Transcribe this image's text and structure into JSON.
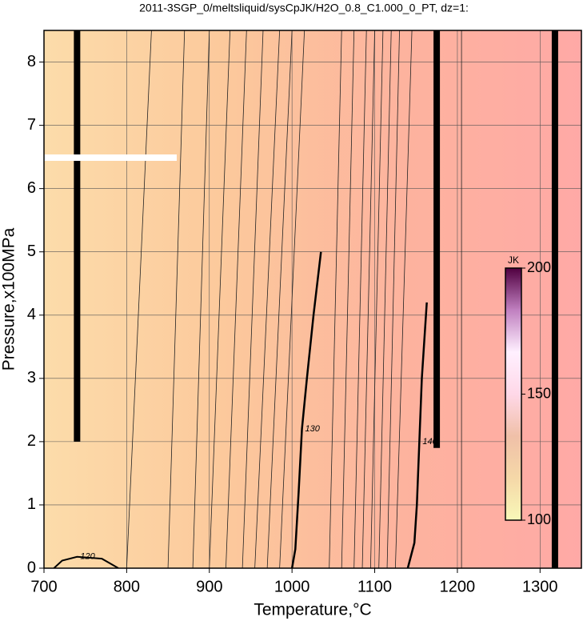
{
  "chart_data": {
    "type": "contour",
    "title": "2011-3SGP_0/meltsliquid/sysCpJK/H2O_0.8_C1.000_0_PT, dz=1:",
    "xlabel": "Temperature,°C",
    "ylabel": "Pressure,x100MPa",
    "xlim": [
      700,
      1350
    ],
    "ylim": [
      0,
      8.5
    ],
    "xticks": [
      700,
      800,
      900,
      1000,
      1100,
      1200,
      1300
    ],
    "yticks": [
      0,
      1,
      2,
      3,
      4,
      5,
      6,
      7,
      8
    ],
    "grid": true,
    "background": [
      "#fcdcaa",
      "#fcc99c",
      "#fdb39e",
      "#ffa9a6"
    ],
    "labeled_contours": [
      {
        "level": 120,
        "x": [
          712,
          722,
          740,
          770,
          790
        ],
        "y": [
          0,
          0.12,
          0.18,
          0.15,
          0
        ],
        "width": 2
      },
      {
        "level": 130,
        "x": [
          1000,
          1004,
          1008,
          1012,
          1018,
          1026,
          1035
        ],
        "y": [
          0,
          0.3,
          1.2,
          2.2,
          3.0,
          4.0,
          5.0
        ],
        "width": 2.5
      },
      {
        "level": 140,
        "x": [
          1140,
          1148,
          1151,
          1154,
          1157,
          1163
        ],
        "y": [
          0,
          0.4,
          1.0,
          2.0,
          3.0,
          4.2
        ],
        "width": 2.5
      }
    ],
    "contours": [
      {
        "x": [
          800,
          830
        ],
        "y": [
          0,
          8.5
        ]
      },
      {
        "x": [
          850,
          870
        ],
        "y": [
          0,
          8.5
        ]
      },
      {
        "x": [
          880,
          900
        ],
        "y": [
          0,
          8.5
        ]
      },
      {
        "x": [
          900,
          925
        ],
        "y": [
          0,
          8.5
        ]
      },
      {
        "x": [
          920,
          945
        ],
        "y": [
          0,
          8.5
        ]
      },
      {
        "x": [
          940,
          965
        ],
        "y": [
          0,
          8.5
        ]
      },
      {
        "x": [
          955,
          985
        ],
        "y": [
          0,
          8.5
        ]
      },
      {
        "x": [
          970,
          1000
        ],
        "y": [
          0,
          8.5
        ]
      },
      {
        "x": [
          985,
          1015
        ],
        "y": [
          0,
          8.5
        ]
      },
      {
        "x": [
          1045,
          1060
        ],
        "y": [
          0,
          8.5
        ]
      },
      {
        "x": [
          1060,
          1075
        ],
        "y": [
          0,
          8.5
        ]
      },
      {
        "x": [
          1075,
          1090
        ],
        "y": [
          0,
          8.5
        ]
      },
      {
        "x": [
          1085,
          1100
        ],
        "y": [
          0,
          8.5
        ]
      },
      {
        "x": [
          1095,
          1110
        ],
        "y": [
          0,
          8.5
        ]
      },
      {
        "x": [
          1105,
          1120
        ],
        "y": [
          0,
          8.5
        ]
      },
      {
        "x": [
          1115,
          1130
        ],
        "y": [
          0,
          8.5
        ]
      },
      {
        "x": [
          1125,
          1145
        ],
        "y": [
          0,
          8.5
        ]
      },
      {
        "x": [
          1205,
          1205
        ],
        "y": [
          0,
          8.5
        ]
      }
    ],
    "boundaries": [
      {
        "x": [
          740,
          740
        ],
        "y": [
          2.0,
          8.5
        ]
      },
      {
        "x": [
          1175,
          1175
        ],
        "y": [
          1.9,
          8.5
        ]
      },
      {
        "x": [
          1318,
          1318
        ],
        "y": [
          0,
          8.5
        ]
      }
    ],
    "colorbar": {
      "label": "JK",
      "lim": [
        100,
        200
      ],
      "ticks": [
        100,
        150,
        200
      ],
      "colors": [
        "#f8f8b8",
        "#f5d8a8",
        "#f0c0a8",
        "#ffd8e8",
        "#fff0ff",
        "#c080c0",
        "#500040"
      ]
    }
  }
}
